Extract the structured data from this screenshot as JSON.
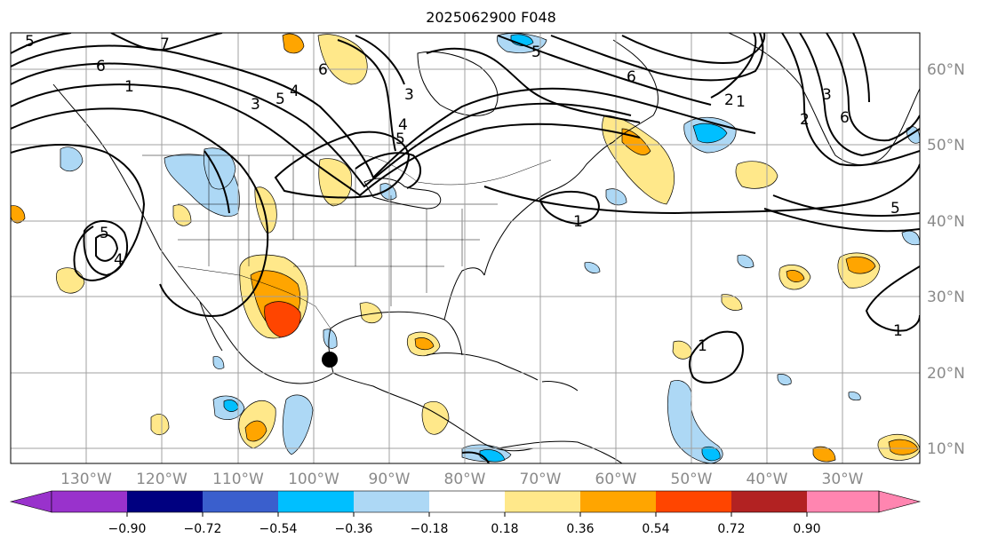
{
  "title": "2025062900 F048",
  "map": {
    "lat_labels": [
      "60°N",
      "50°N",
      "40°N",
      "30°N",
      "20°N",
      "10°N"
    ],
    "lon_labels": [
      "130°W",
      "120°W",
      "110°W",
      "100°W",
      "90°W",
      "80°W",
      "70°W",
      "60°W",
      "50°W",
      "40°W",
      "30°W"
    ],
    "contour_labels": [
      "5",
      "6",
      "7",
      "1",
      "3",
      "5",
      "4",
      "6",
      "3",
      "2",
      "1",
      "5",
      "4",
      "5",
      "6",
      "5",
      "6",
      "4",
      "2",
      "3",
      "6",
      "2",
      "1",
      "1",
      "5",
      "1",
      "1",
      "3",
      "4",
      "5"
    ],
    "storm_marker": "black dot over Gulf of Mexico coast",
    "land_outline_color": "#000000",
    "grid_color": "#a0a0a0"
  },
  "colorbar": {
    "ticks": [
      "−0.90",
      "−0.72",
      "−0.54",
      "−0.36",
      "−0.18",
      "0.18",
      "0.36",
      "0.54",
      "0.72",
      "0.90"
    ],
    "colors": [
      "#9932cc",
      "#000080",
      "#3a5fcd",
      "#00bfff",
      "#add8f5",
      "#ffffff",
      "#ffe88a",
      "#ffa500",
      "#ff4500",
      "#b22222",
      "#ff85b0"
    ]
  }
}
